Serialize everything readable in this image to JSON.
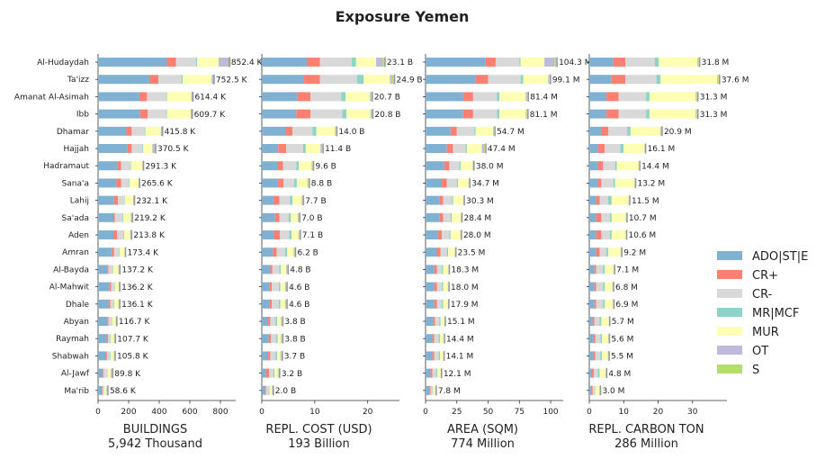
{
  "title": "Exposure Yemen",
  "chart_data": {
    "type": "bar",
    "orientation": "horizontal",
    "stacked": true,
    "categories": [
      "Al-Hudaydah",
      "Ta'izz",
      "Amanat Al-Asimah",
      "Ibb",
      "Dhamar",
      "Hajjah",
      "Hadramaut",
      "Sana'a",
      "Lahij",
      "Sa'ada",
      "Aden",
      "Amran",
      "Al-Bayda",
      "Al-Mahwit",
      "Dhale",
      "Abyan",
      "Raymah",
      "Shabwah",
      "Al-Jawf",
      "Ma'rib"
    ],
    "legend": {
      "placement": "right",
      "entries": [
        {
          "name": "ADO|ST|E",
          "color": "#80b1d3"
        },
        {
          "name": "CR+",
          "color": "#fb8072"
        },
        {
          "name": "CR-",
          "color": "#d9d9d9"
        },
        {
          "name": "MR|MCF",
          "color": "#8dd3c7"
        },
        {
          "name": "MUR",
          "color": "#ffffb3"
        },
        {
          "name": "OT",
          "color": "#bebada"
        },
        {
          "name": "S",
          "color": "#b3de69"
        }
      ]
    },
    "panels": [
      {
        "xlabel": "BUILDINGS",
        "total_label": "5,942 Thousand",
        "xlim": [
          0,
          900
        ],
        "xticks": [
          0,
          200,
          400,
          600,
          800
        ],
        "totals": [
          852.4,
          752.5,
          614.4,
          609.7,
          415.8,
          370.5,
          291.3,
          265.6,
          232.1,
          219.2,
          213.8,
          173.4,
          137.2,
          136.2,
          136.1,
          116.7,
          107.7,
          105.8,
          89.8,
          58.6
        ],
        "value_labels": [
          "852.4 K",
          "752.5 K",
          "614.4 K",
          "609.7 K",
          "415.8 K",
          "370.5 K",
          "291.3 K",
          "265.6 K",
          "232.1 K",
          "219.2 K",
          "213.8 K",
          "173.4 K",
          "137.2 K",
          "136.2 K",
          "136.1 K",
          "116.7 K",
          "107.7 K",
          "105.8 K",
          "89.8 K",
          "58.6 K"
        ],
        "segments": [
          [
            450,
            60,
            130,
            8,
            140,
            75,
            5
          ],
          [
            335,
            60,
            150,
            8,
            190,
            10,
            5
          ],
          [
            270,
            50,
            125,
            5,
            160,
            8,
            4
          ],
          [
            275,
            50,
            120,
            5,
            155,
            8,
            4
          ],
          [
            185,
            35,
            85,
            5,
            100,
            10,
            3
          ],
          [
            190,
            30,
            70,
            5,
            60,
            15,
            3
          ],
          [
            125,
            25,
            60,
            5,
            75,
            5,
            2
          ],
          [
            120,
            30,
            50,
            5,
            60,
            5,
            2
          ],
          [
            105,
            25,
            40,
            5,
            55,
            4,
            2
          ],
          [
            100,
            10,
            50,
            5,
            50,
            4,
            2
          ],
          [
            100,
            25,
            40,
            5,
            40,
            4,
            2
          ],
          [
            90,
            15,
            30,
            5,
            35,
            4,
            2
          ],
          [
            60,
            8,
            25,
            5,
            35,
            4,
            2
          ],
          [
            75,
            10,
            20,
            5,
            25,
            2,
            2
          ],
          [
            70,
            10,
            20,
            5,
            28,
            2,
            2
          ],
          [
            60,
            8,
            20,
            4,
            22,
            2,
            2
          ],
          [
            55,
            10,
            15,
            4,
            20,
            2,
            2
          ],
          [
            50,
            8,
            20,
            4,
            20,
            2,
            2
          ],
          [
            30,
            5,
            25,
            3,
            20,
            5,
            2
          ],
          [
            25,
            5,
            10,
            2,
            12,
            2,
            2
          ]
        ]
      },
      {
        "xlabel": "REPL. COST (USD)",
        "total_label": "193 Billion",
        "xlim": [
          0,
          26
        ],
        "xticks": [
          0,
          10,
          20
        ],
        "totals": [
          23.1,
          24.9,
          20.7,
          20.8,
          14.0,
          11.4,
          9.6,
          8.8,
          7.7,
          7.0,
          7.1,
          6.2,
          4.8,
          4.6,
          4.6,
          3.8,
          3.8,
          3.7,
          3.2,
          2.0
        ],
        "value_labels": [
          "23.1 B",
          "24.9 B",
          "20.7 B",
          "20.8 B",
          "14.0 B",
          "11.4 B",
          "9.6 B",
          "8.8 B",
          "7.7 B",
          "7.0 B",
          "7.1 B",
          "6.2 B",
          "4.8 B",
          "4.6 B",
          "4.6 B",
          "3.8 B",
          "3.8 B",
          "3.7 B",
          "3.2 B",
          "2.0 B"
        ],
        "segments": [
          [
            8.5,
            2.5,
            6.0,
            0.8,
            3.8,
            1.2,
            0.3
          ],
          [
            8.0,
            3.0,
            7.0,
            1.2,
            5.0,
            0.4,
            0.3
          ],
          [
            6.7,
            2.5,
            5.8,
            0.8,
            4.6,
            0.2,
            0.1
          ],
          [
            6.5,
            2.7,
            6.0,
            0.8,
            4.5,
            0.2,
            0.1
          ],
          [
            4.5,
            1.3,
            3.8,
            0.7,
            3.5,
            0.1,
            0.1
          ],
          [
            3.1,
            1.5,
            3.2,
            0.5,
            2.8,
            0.2,
            0.1
          ],
          [
            2.9,
            1.1,
            2.5,
            0.5,
            2.4,
            0.1,
            0.1
          ],
          [
            3.1,
            1.0,
            2.0,
            0.5,
            2.0,
            0.1,
            0.1
          ],
          [
            2.2,
            1.1,
            2.0,
            0.5,
            1.7,
            0.1,
            0.1
          ],
          [
            2.5,
            0.8,
            1.8,
            0.4,
            1.3,
            0.1,
            0.1
          ],
          [
            2.3,
            1.1,
            1.8,
            0.4,
            1.3,
            0.1,
            0.1
          ],
          [
            2.1,
            0.7,
            1.6,
            0.4,
            1.2,
            0.1,
            0.1
          ],
          [
            1.6,
            0.4,
            1.3,
            0.3,
            1.0,
            0.1,
            0.1
          ],
          [
            1.4,
            0.5,
            1.3,
            0.3,
            0.9,
            0.1,
            0.1
          ],
          [
            1.4,
            0.5,
            1.3,
            0.3,
            0.9,
            0.1,
            0.1
          ],
          [
            1.2,
            0.4,
            1.0,
            0.3,
            0.7,
            0.1,
            0.1
          ],
          [
            1.3,
            0.4,
            1.0,
            0.3,
            0.6,
            0.1,
            0.1
          ],
          [
            1.2,
            0.4,
            1.0,
            0.3,
            0.6,
            0.1,
            0.1
          ],
          [
            0.8,
            0.6,
            0.8,
            0.2,
            0.6,
            0.1,
            0.1
          ],
          [
            0.6,
            0.2,
            0.6,
            0.1,
            0.4,
            0.05,
            0.05
          ]
        ]
      },
      {
        "xlabel": "AREA (SQM)",
        "total_label": "774 Million",
        "xlim": [
          0,
          110
        ],
        "xticks": [
          0,
          25,
          50,
          75,
          100
        ],
        "totals": [
          104.3,
          99.1,
          81.4,
          81.1,
          54.7,
          47.4,
          38.0,
          34.7,
          30.3,
          28.4,
          28.0,
          23.5,
          18.3,
          18.0,
          17.9,
          15.1,
          14.4,
          14.1,
          12.1,
          7.8
        ],
        "value_labels": [
          "104.3 M",
          "99.1 M",
          "81.4 M",
          "81.1 M",
          "54.7 M",
          "47.4 M",
          "38.0 M",
          "34.7 M",
          "30.3 M",
          "28.4 M",
          "28.0 M",
          "23.5 M",
          "18.3 M",
          "18.0 M",
          "17.9 M",
          "15.1 M",
          "14.4 M",
          "14.1 M",
          "12.1 M",
          "7.8 M"
        ],
        "segments": [
          [
            48,
            8,
            19,
            1,
            19,
            8,
            1.3
          ],
          [
            40,
            10,
            26,
            2,
            20,
            0.6,
            0.5
          ],
          [
            30,
            8,
            19,
            2,
            21,
            1,
            0.4
          ],
          [
            30,
            8,
            19,
            2,
            21,
            0.7,
            0.4
          ],
          [
            20,
            5,
            14,
            1,
            14,
            0.3,
            0.4
          ],
          [
            17,
            5,
            10,
            1,
            12,
            2,
            0.4
          ],
          [
            15,
            4,
            8,
            1,
            9.5,
            0.3,
            0.2
          ],
          [
            13,
            4,
            8,
            1,
            8.3,
            0.2,
            0.2
          ],
          [
            11,
            3,
            7,
            1,
            8,
            0.1,
            0.2
          ],
          [
            11,
            3,
            6,
            1,
            7,
            0.2,
            0.2
          ],
          [
            10,
            3,
            6,
            1,
            7.7,
            0.1,
            0.2
          ],
          [
            9,
            3,
            5,
            1,
            5.3,
            0.1,
            0.1
          ],
          [
            7,
            2,
            4,
            1,
            4.1,
            0.1,
            0.1
          ],
          [
            7,
            2,
            4,
            1,
            3.8,
            0.1,
            0.1
          ],
          [
            7,
            2,
            4,
            1,
            3.7,
            0.1,
            0.1
          ],
          [
            6,
            1.5,
            3.5,
            1,
            3,
            0.05,
            0.05
          ],
          [
            5.5,
            1.5,
            3.5,
            1,
            2.8,
            0.05,
            0.05
          ],
          [
            5.5,
            1.5,
            3.5,
            1,
            2.5,
            0.05,
            0.05
          ],
          [
            4,
            1.5,
            3,
            1,
            2.4,
            0.1,
            0.1
          ],
          [
            3,
            1,
            1.5,
            0.5,
            1.7,
            0.05,
            0.05
          ]
        ]
      },
      {
        "xlabel": "REPL. CARBON TON",
        "total_label": "286 Million",
        "xlim": [
          0,
          40
        ],
        "xticks": [
          0,
          10,
          20,
          30
        ],
        "totals": [
          31.8,
          37.6,
          31.3,
          31.3,
          20.9,
          16.1,
          14.4,
          13.2,
          11.5,
          10.7,
          10.6,
          9.2,
          7.1,
          6.8,
          6.9,
          5.7,
          5.6,
          5.5,
          4.8,
          3.0
        ],
        "value_labels": [
          "31.8 M",
          "37.6 M",
          "31.3 M",
          "31.3 M",
          "20.9 M",
          "16.1 M",
          "14.4 M",
          "13.2 M",
          "11.5 M",
          "10.7 M",
          "10.6 M",
          "9.2 M",
          "7.1 M",
          "6.8 M",
          "6.9 M",
          "5.7 M",
          "5.6 M",
          "5.5 M",
          "4.8 M",
          "3.0 M"
        ],
        "segments": [
          [
            7,
            3.5,
            8.5,
            1.2,
            11.2,
            0.2,
            0.2
          ],
          [
            6.5,
            4,
            9,
            1.2,
            16.5,
            0.2,
            0.2
          ],
          [
            5,
            3.5,
            8,
            1,
            13.4,
            0.2,
            0.2
          ],
          [
            5,
            3.5,
            8,
            1,
            13.4,
            0.2,
            0.2
          ],
          [
            3.5,
            2,
            5.5,
            1,
            8.6,
            0.2,
            0.1
          ],
          [
            2.5,
            2,
            4.5,
            1,
            6,
            0.05,
            0.05
          ],
          [
            2.5,
            1.5,
            3.5,
            0.5,
            6.3,
            0.05,
            0.05
          ],
          [
            2.5,
            1,
            3.5,
            0.5,
            5.6,
            0.05,
            0.05
          ],
          [
            2,
            1,
            2.5,
            1,
            4.9,
            0.05,
            0.05
          ],
          [
            2,
            1.5,
            2.5,
            0.5,
            4.1,
            0.05,
            0.05
          ],
          [
            2,
            1.5,
            2.5,
            0.5,
            4,
            0.05,
            0.05
          ],
          [
            2,
            1,
            2,
            0.5,
            3.6,
            0.05,
            0.05
          ],
          [
            1.5,
            0.5,
            2,
            0.5,
            2.5,
            0.05,
            0.05
          ],
          [
            1.5,
            0.5,
            2,
            0.5,
            2.2,
            0.05,
            0.05
          ],
          [
            1.5,
            0.5,
            2,
            0.5,
            2.3,
            0.05,
            0.05
          ],
          [
            1,
            0.5,
            1.5,
            0.5,
            2.1,
            0.05,
            0.05
          ],
          [
            1.2,
            0.5,
            1.5,
            0.5,
            1.8,
            0.05,
            0.05
          ],
          [
            1.2,
            0.5,
            1.5,
            0.5,
            1.7,
            0.05,
            0.05
          ],
          [
            0.8,
            0.5,
            1.2,
            0.5,
            1.7,
            0.05,
            0.05
          ],
          [
            0.5,
            0.5,
            0.5,
            0.2,
            1.2,
            0.05,
            0.05
          ]
        ]
      }
    ]
  }
}
